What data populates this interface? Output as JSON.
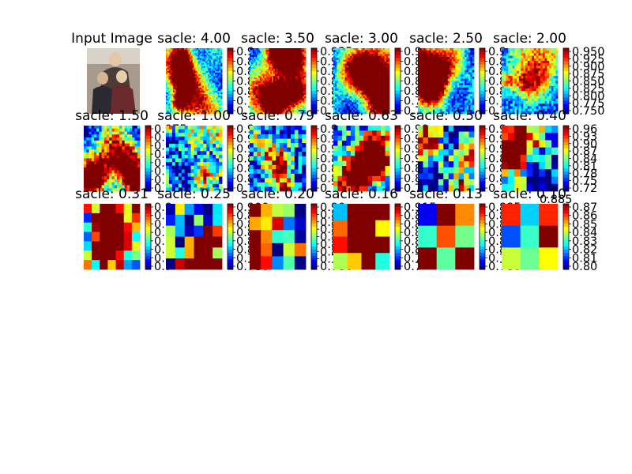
{
  "figure": {
    "input_title": "Input Image"
  },
  "chart_data": {
    "type": "heatmap",
    "description_of_grid": "3 rows x 6 columns of panels; first panel is the input photo, the rest are score heatmaps with colorbars",
    "colormap": "jet",
    "panels": [
      {
        "title": "Input Image",
        "kind": "photo",
        "ticks": []
      },
      {
        "title": "sacle: 4.00",
        "kind": "heatmap",
        "ticks": [
          "0.9",
          "0.8",
          "0.8",
          "0.8",
          "0.8",
          "0.7",
          "0.7"
        ],
        "seed": 11,
        "grid": 40,
        "cscale": 0.3
      },
      {
        "title": "sacle: 3.50",
        "kind": "heatmap",
        "ticks": [
          "0.935",
          "0.9",
          "0.8",
          "0.8",
          "0.8",
          "0.8",
          "0.7"
        ],
        "seed": 23,
        "grid": 38,
        "cscale": 0.3
      },
      {
        "title": "sacle: 3.00",
        "kind": "heatmap",
        "ticks": [
          "0.9",
          "0.8",
          "0.8",
          "0.8",
          "0.8",
          "0.7",
          "0.7"
        ],
        "seed": 37,
        "grid": 34,
        "cscale": 0.3
      },
      {
        "title": "sacle: 2.50",
        "kind": "heatmap",
        "ticks": [
          "0.9",
          "0.8",
          "0.8",
          "0.8",
          "0.8",
          "0.7",
          "0.7"
        ],
        "seed": 41,
        "grid": 30,
        "cscale": 0.3
      },
      {
        "title": "sacle: 2.00",
        "kind": "heatmap",
        "ticks": [
          "0.950",
          "0.925",
          "0.900",
          "0.875",
          "0.850",
          "0.825",
          "0.800",
          "0.775",
          "0.750"
        ],
        "seed": 53,
        "grid": 26,
        "cscale": 0.32
      },
      {
        "title": "sacle: 1.50",
        "kind": "heatmap",
        "ticks": [
          "0.975",
          "0.9",
          "0.9",
          "0.9",
          "0.8",
          "0.8",
          "0.8",
          "0.7"
        ],
        "seed": 61,
        "grid": 22,
        "cscale": 0.45
      },
      {
        "title": "sacle: 1.00",
        "kind": "heatmap",
        "ticks": [
          "0.9",
          "0.9",
          "0.9",
          "0.8",
          "0.8",
          "0.8",
          "0.7"
        ],
        "seed": 71,
        "grid": 18,
        "cscale": 0.55
      },
      {
        "title": "sacle: 0.79",
        "kind": "heatmap",
        "ticks": [
          "0.9",
          "0.9",
          "0.9",
          "0.8",
          "0.8",
          "0.8",
          "0.7"
        ],
        "seed": 83,
        "grid": 15,
        "cscale": 0.6
      },
      {
        "title": "sacle: 0.63",
        "kind": "heatmap",
        "ticks": [
          "0.99",
          "0.9",
          "0.9",
          "0.9",
          "0.8",
          "0.8",
          "0.7"
        ],
        "seed": 97,
        "grid": 13,
        "cscale": 0.6
      },
      {
        "title": "sacle: 0.50",
        "kind": "heatmap",
        "ticks": [
          "0.9",
          "0.9",
          "0.9",
          "0.8",
          "0.8",
          "0.8",
          "0.7"
        ],
        "seed": 101,
        "grid": 11,
        "cscale": 0.65
      },
      {
        "title": "sacle: 0.40",
        "kind": "heatmap",
        "ticks": [
          "0.96",
          "0.93",
          "0.90",
          "0.87",
          "0.84",
          "0.81",
          "0.78",
          "0.75",
          "0.72"
        ],
        "seed": 113,
        "grid": 9,
        "cscale": 0.7
      },
      {
        "title": "sacle: 0.31",
        "kind": "heatmap",
        "ticks": [
          "0.9",
          "0.9",
          "0.8",
          "0.8",
          "0.8",
          "0.7",
          "0.7",
          "0.7"
        ],
        "seed": 127,
        "grid": 7,
        "cscale": 0.85
      },
      {
        "title": "sacle: 0.25",
        "kind": "heatmap",
        "ticks": [
          "0.900",
          "0.8",
          "0.8",
          "0.8",
          "0.8",
          "0.8",
          "0.7",
          "0.780"
        ],
        "seed": 131,
        "grid": 6,
        "cscale": 0.95
      },
      {
        "title": "sacle: 0.20",
        "kind": "heatmap",
        "ticks": [
          "0.90",
          "0.88",
          "0.86",
          "0.85",
          "0.84",
          "0.82",
          "0.81",
          "0.79",
          "0.780"
        ],
        "seed": 149,
        "grid": 5,
        "cscale": 1.0
      },
      {
        "title": "sacle: 0.16",
        "kind": "heatmap",
        "ticks": [
          "0.915",
          "0.8",
          "0.8",
          "0.8",
          "0.8",
          "0.8",
          "0.7",
          "0.7"
        ],
        "seed": 157,
        "grid": 4,
        "cscale": 1.0
      },
      {
        "title": "sacle: 0.13",
        "kind": "heatmap",
        "ticks": [
          "0.885",
          "0.8",
          "0.8",
          "0.8",
          "0.8",
          "0.8",
          "0.7",
          "0.780"
        ],
        "seed": 167,
        "grid": 3,
        "cscale": 1.0
      },
      {
        "title": "sacle: 0.10",
        "kind": "heatmap",
        "ticks": [
          "0.87",
          "0.86",
          "0.85",
          "0.84",
          "0.83",
          "0.82",
          "0.81",
          "0.80"
        ],
        "seed": 179,
        "grid": 3,
        "cscale": 1.0,
        "extra_top_tick": "0.885"
      }
    ]
  }
}
